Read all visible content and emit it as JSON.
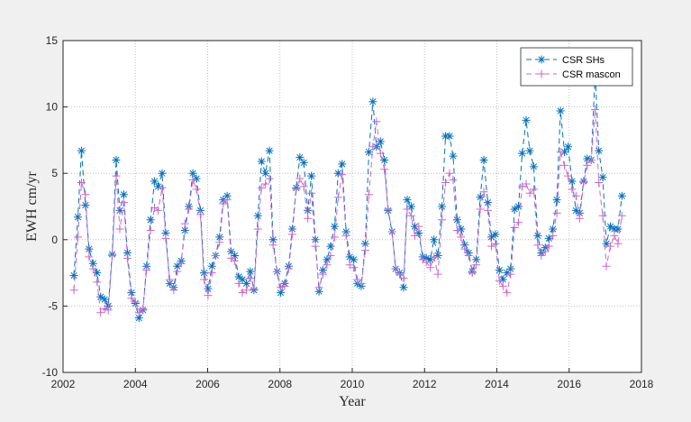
{
  "chart_data": {
    "type": "line",
    "xlabel": "Year",
    "ylabel": "EWH cm/yr",
    "xlim": [
      2002,
      2018
    ],
    "xticks": [
      2002,
      2004,
      2006,
      2008,
      2010,
      2012,
      2014,
      2016,
      2018
    ],
    "ylim": [
      -10,
      15
    ],
    "yticks": [
      -10,
      -5,
      0,
      5,
      10,
      15
    ],
    "grid": true,
    "legend": "northeast",
    "x": [
      2002.3,
      2002.41,
      2002.51,
      2002.62,
      2002.72,
      2002.83,
      2002.94,
      2003.04,
      2003.15,
      2003.25,
      2003.36,
      2003.47,
      2003.57,
      2003.68,
      2003.78,
      2003.89,
      2004.0,
      2004.1,
      2004.21,
      2004.31,
      2004.42,
      2004.53,
      2004.63,
      2004.74,
      2004.84,
      2004.95,
      2005.06,
      2005.16,
      2005.27,
      2005.37,
      2005.48,
      2005.59,
      2005.69,
      2005.8,
      2005.9,
      2006.01,
      2006.12,
      2006.22,
      2006.33,
      2006.43,
      2006.54,
      2006.65,
      2006.75,
      2006.86,
      2006.96,
      2007.07,
      2007.18,
      2007.28,
      2007.39,
      2007.49,
      2007.6,
      2007.71,
      2007.81,
      2007.92,
      2008.02,
      2008.13,
      2008.24,
      2008.34,
      2008.45,
      2008.55,
      2008.66,
      2008.77,
      2008.87,
      2008.98,
      2009.08,
      2009.19,
      2009.3,
      2009.4,
      2009.51,
      2009.61,
      2009.72,
      2009.83,
      2009.93,
      2010.04,
      2010.14,
      2010.25,
      2010.36,
      2010.46,
      2010.57,
      2010.67,
      2010.78,
      2010.89,
      2010.99,
      2011.1,
      2011.2,
      2011.31,
      2011.42,
      2011.52,
      2011.63,
      2011.73,
      2011.84,
      2011.95,
      2012.05,
      2012.16,
      2012.26,
      2012.37,
      2012.48,
      2012.58,
      2012.69,
      2012.79,
      2012.9,
      2013.01,
      2013.11,
      2013.22,
      2013.32,
      2013.43,
      2013.54,
      2013.64,
      2013.75,
      2013.85,
      2013.96,
      2014.07,
      2014.17,
      2014.28,
      2014.38,
      2014.49,
      2014.6,
      2014.7,
      2014.81,
      2014.91,
      2015.02,
      2015.13,
      2015.23,
      2015.34,
      2015.44,
      2015.55,
      2015.66,
      2015.76,
      2015.87,
      2015.97,
      2016.08,
      2016.19,
      2016.29,
      2016.4,
      2016.5,
      2016.61,
      2016.72,
      2016.82,
      2016.93,
      2017.03,
      2017.14,
      2017.25,
      2017.35,
      2017.46
    ],
    "series": [
      {
        "name": "CSR SHs",
        "color": "#0072bd",
        "marker": "*",
        "values": [
          -2.7,
          1.7,
          6.7,
          2.6,
          -0.7,
          -1.8,
          -2.5,
          -4.3,
          -4.5,
          -5,
          -1.1,
          6.0,
          2.2,
          3.4,
          -1,
          -4,
          -4.8,
          -5.9,
          -5.3,
          -2,
          1.5,
          4.4,
          4.0,
          5.0,
          0.5,
          -3.3,
          -3.6,
          -2,
          -1.6,
          0.7,
          2.5,
          5.0,
          4.6,
          2.2,
          -2.5,
          -3.7,
          -2,
          -1.2,
          0.2,
          3.0,
          3.3,
          -0.9,
          -1.2,
          -2.8,
          -3,
          -3.3,
          -2.4,
          -3.8,
          1.8,
          5.9,
          5,
          6.7,
          0,
          -2.4,
          -4,
          -3.3,
          -2,
          0.8,
          3.9,
          6.2,
          5.8,
          2.2,
          4.8,
          0,
          -3.9,
          -2.3,
          -1.5,
          -0.5,
          1,
          5.0,
          5.7,
          0.6,
          -1.3,
          -1.5,
          -3.3,
          -3.5,
          -0.3,
          6.6,
          10.4,
          7,
          7.4,
          6,
          2.2,
          0.6,
          -2.2,
          -2.5,
          -3.6,
          3.0,
          2.5,
          1.0,
          0.5,
          -1.3,
          -1.4,
          -1.5,
          0,
          -1.2,
          2.5,
          7.8,
          7.8,
          6.3,
          1.5,
          0.8,
          -0.4,
          -1,
          -2.4,
          -1.5,
          3.2,
          6.0,
          2.8,
          0.2,
          0.4,
          -2.3,
          -3,
          -2.5,
          -2.2,
          2.3,
          2.5,
          6.5,
          9,
          6.7,
          5.5,
          0.3,
          -1,
          -0.6,
          0.1,
          0.8,
          3,
          9.7,
          6.6,
          7,
          4.4,
          2.2,
          2,
          4.4,
          6.1,
          6.0,
          12.5,
          6.7,
          4.7,
          -0.3,
          1.0,
          0.8,
          0.8,
          3.3
        ]
      },
      {
        "name": "CSR mascon",
        "color": "#cc66cc",
        "marker": "+",
        "values": [
          -3.8,
          0.2,
          4.3,
          3.4,
          -1.3,
          -2.2,
          -3.2,
          -5.5,
          -5.2,
          -5.3,
          -1.2,
          4.8,
          0.8,
          2.8,
          -1.4,
          -4.4,
          -4.7,
          -5.5,
          -5.2,
          -2.3,
          0.7,
          2.4,
          2.2,
          3.9,
          0.1,
          -3.0,
          -3.8,
          -2.4,
          -1.8,
          1.2,
          2.3,
          4.5,
          3.8,
          1.9,
          -3.0,
          -4.2,
          -2.5,
          -1.2,
          -0.2,
          2.7,
          3.0,
          -1.4,
          -1.6,
          -3.3,
          -4.0,
          -3.8,
          -2.9,
          -3.7,
          0.8,
          3.9,
          4.2,
          4.6,
          -0.4,
          -2.4,
          -3.6,
          -3.5,
          -2.2,
          0.4,
          3.8,
          4.6,
          4.0,
          1.6,
          3.5,
          -0.5,
          -3.6,
          -2.6,
          -1.9,
          -1.2,
          0.2,
          3.2,
          4.9,
          0.3,
          -1.9,
          -2.1,
          -3.0,
          -3.3,
          -0.8,
          3.4,
          7.0,
          8.9,
          6.5,
          5.3,
          2.3,
          0.6,
          -2.2,
          -2.6,
          -2.9,
          2.3,
          1.8,
          0.3,
          1.0,
          -1.5,
          -1.7,
          -2.1,
          -1.3,
          -2.6,
          1.5,
          4.3,
          5.0,
          4.5,
          0.7,
          0.2,
          -0.7,
          -1.2,
          -2.5,
          -1.9,
          2.3,
          3.6,
          2.2,
          -0.5,
          -0.3,
          -3.1,
          -3.5,
          -4.0,
          -2.6,
          0.9,
          1.3,
          4.0,
          4.2,
          3.5,
          3.8,
          -0.4,
          -1.2,
          -0.9,
          -0.5,
          0.3,
          2.0,
          6.6,
          5.6,
          4.8,
          3.8,
          3.3,
          1.6,
          4.3,
          5.6,
          6.0,
          9.8,
          4.3,
          1.8,
          -2.0,
          -0.5,
          0.3,
          -0.3,
          1.8
        ]
      }
    ]
  }
}
